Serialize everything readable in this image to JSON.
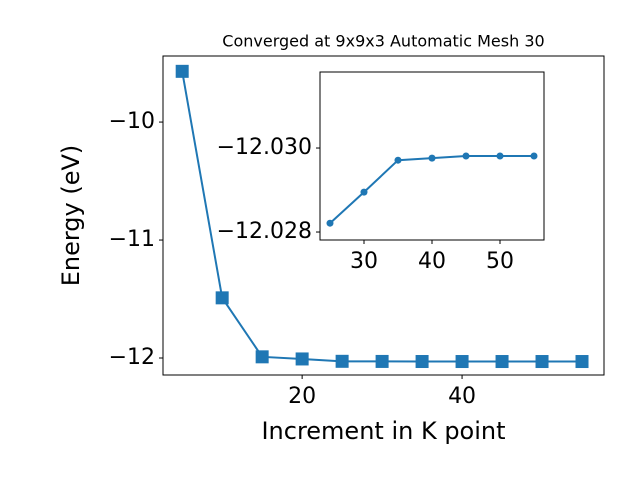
{
  "chart_data": [
    {
      "type": "line",
      "title": "Converged at 9x9x3 Automatic Mesh 30",
      "x_label": "Increment in K point",
      "y_label": "Energy (eV)",
      "x": [
        5,
        10,
        15,
        20,
        25,
        30,
        35,
        40,
        45,
        50,
        55
      ],
      "series": [
        {
          "color": "#1f77b4",
          "marker": "square",
          "values": [
            -9.57,
            -11.49,
            -11.99,
            -12.008,
            -12.028,
            -12.029,
            -12.0297,
            -12.0298,
            -12.0298,
            -12.0298,
            -12.0298
          ]
        }
      ],
      "xlim": [
        2.6,
        57.75
      ],
      "ylim": [
        -12.144,
        -9.44
      ],
      "xticks": [
        20,
        40
      ],
      "yticks": [
        {
          "value": -12,
          "label": "−12"
        },
        {
          "value": -11,
          "label": "−11"
        },
        {
          "value": -10,
          "label": "−10"
        }
      ]
    },
    {
      "type": "line",
      "x": [
        25,
        30,
        35,
        40,
        45,
        50,
        55
      ],
      "series": [
        {
          "color": "#1f77b4",
          "marker": "circle",
          "values": [
            -12.02821,
            -12.02895,
            -12.02971,
            -12.02976,
            -12.02981,
            -12.02981,
            -12.02981
          ]
        }
      ],
      "xlim": [
        23.53,
        56.47
      ],
      "ylim": [
        -12.02781,
        -12.03181
      ],
      "xticks": [
        30,
        40,
        50
      ],
      "yticks": [
        {
          "value": -12.028,
          "label": "−12.028"
        },
        {
          "value": -12.03,
          "label": "−12.030"
        }
      ]
    }
  ]
}
